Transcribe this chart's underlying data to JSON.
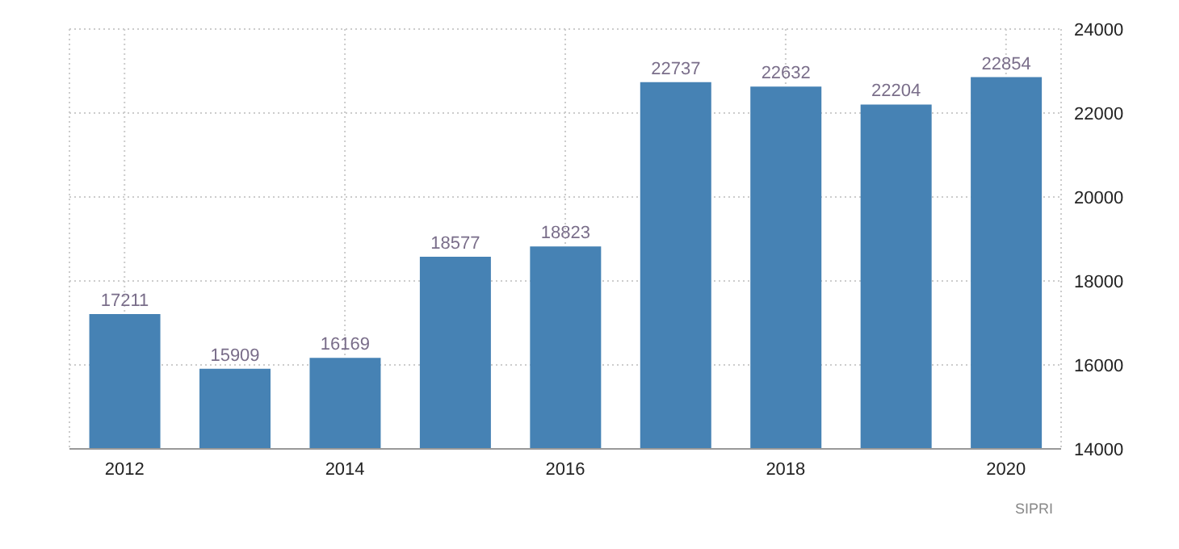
{
  "chart_data": {
    "type": "bar",
    "categories": [
      "2012",
      null,
      "2014",
      null,
      "2016",
      null,
      "2018",
      null,
      "2020"
    ],
    "values": [
      17211,
      15909,
      16169,
      18577,
      18823,
      22737,
      22632,
      22204,
      22854
    ],
    "color": "#4682b4",
    "ylim": [
      14000,
      24000
    ],
    "yticks": [
      14000,
      16000,
      18000,
      20000,
      22000,
      24000
    ],
    "grid": true,
    "data_labels": true,
    "annotations": [
      "SIPRI"
    ]
  }
}
